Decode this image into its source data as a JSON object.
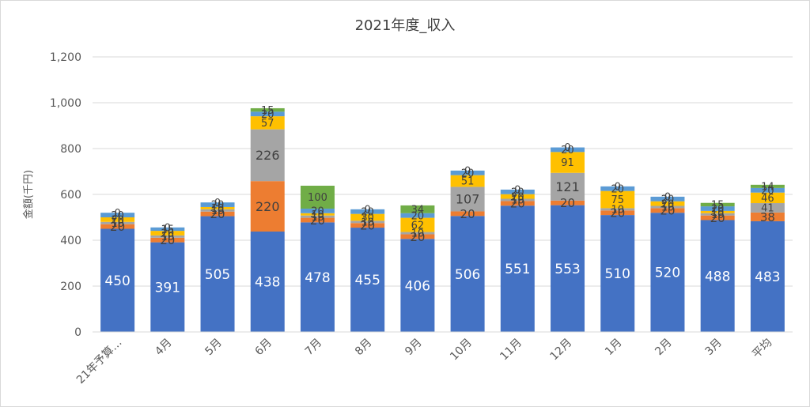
{
  "chart_data": {
    "type": "bar",
    "stacked": true,
    "title": "2021年度_収入",
    "ylabel": "金額(千円)",
    "xlabel": "",
    "ylim": [
      0,
      1200
    ],
    "yticks": [
      0,
      200,
      400,
      600,
      800,
      1000,
      1200
    ],
    "ytick_labels": [
      "0",
      "200",
      "400",
      "600",
      "800",
      "1,000",
      "1,200"
    ],
    "grid": true,
    "legend": "none",
    "categories": [
      "21年予算…",
      "4月",
      "5月",
      "6月",
      "7月",
      "8月",
      "9月",
      "10月",
      "11月",
      "12月",
      "1月",
      "2月",
      "3月",
      "平均"
    ],
    "series": [
      {
        "color": "#4472c4",
        "values": [
          450,
          391,
          505,
          438,
          478,
          455,
          406,
          506,
          551,
          553,
          510,
          520,
          488,
          483
        ]
      },
      {
        "color": "#ed7d31",
        "values": [
          20,
          20,
          20,
          220,
          20,
          20,
          20,
          20,
          20,
          20,
          20,
          20,
          20,
          38
        ]
      },
      {
        "color": "#a5a5a5",
        "values": [
          10,
          10,
          10,
          226,
          10,
          10,
          10,
          107,
          10,
          121,
          10,
          10,
          10,
          41
        ]
      },
      {
        "color": "#ffc000",
        "values": [
          20,
          20,
          10,
          57,
          10,
          30,
          62,
          51,
          20,
          91,
          75,
          20,
          10,
          46
        ]
      },
      {
        "color": "#5b9bd5",
        "values": [
          20,
          15,
          20,
          20,
          20,
          20,
          20,
          20,
          20,
          20,
          20,
          20,
          20,
          20
        ]
      },
      {
        "color": "#70ad47",
        "values": [
          0,
          0,
          0,
          15,
          100,
          0,
          34,
          0,
          0,
          0,
          0,
          0,
          15,
          14
        ]
      }
    ],
    "data_labels": [
      [
        "450",
        "391",
        "505",
        "438",
        "478",
        "455",
        "406",
        "506",
        "551",
        "553",
        "510",
        "520",
        "488",
        "483"
      ],
      [
        "20",
        "20",
        "20",
        "220",
        "20",
        "20",
        "20",
        "20",
        "20",
        "20",
        "20",
        "20",
        "20",
        "38"
      ],
      [
        "10",
        "10",
        "10",
        "226",
        "10",
        "10",
        "10",
        "107",
        "10",
        "121",
        "10",
        "10",
        "10",
        "41"
      ],
      [
        "20",
        "20",
        "10",
        "57",
        "10",
        "30",
        "62",
        "51",
        "20",
        "91",
        "75",
        "20",
        "10",
        "46"
      ],
      [
        "20",
        "15",
        "20",
        "20",
        "20",
        "20",
        "20",
        "20",
        "20",
        "20",
        "20",
        "20",
        "20",
        "20"
      ],
      [
        "0",
        "0",
        "0",
        "15",
        "100",
        "0",
        "34",
        "0",
        "0",
        "0",
        "0",
        "0",
        "15",
        "14"
      ]
    ]
  }
}
